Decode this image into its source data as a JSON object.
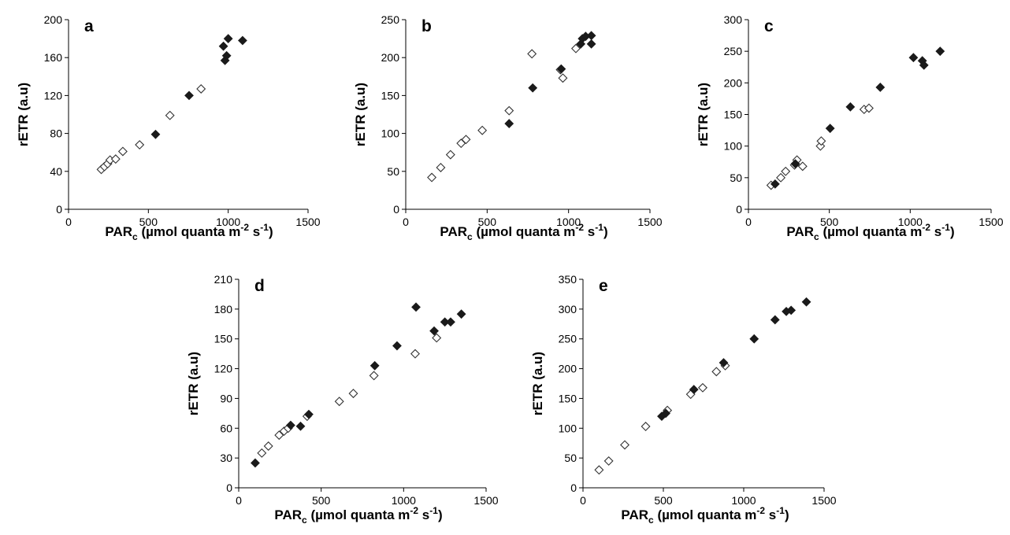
{
  "chart_data": [
    {
      "type": "scatter",
      "panel_label": "a",
      "xlabel": {
        "main": "PAR",
        "sub": "c",
        "rest": " (µmol quanta m",
        "sup1": "-2",
        "mid": " s",
        "sup2": "-1",
        "end": ")"
      },
      "ylabel": "rETR (a.u)",
      "xlim": [
        0,
        1500
      ],
      "ylim": [
        0,
        200
      ],
      "xticks": [
        0,
        500,
        1000,
        1500
      ],
      "yticks": [
        0,
        40,
        80,
        120,
        160,
        200
      ],
      "grid": false,
      "legend": "none",
      "series": [
        {
          "marker": "open-diamond",
          "points": [
            [
              205,
              42
            ],
            [
              225,
              45
            ],
            [
              245,
              48
            ],
            [
              260,
              52
            ],
            [
              295,
              53
            ],
            [
              340,
              61
            ],
            [
              445,
              68
            ],
            [
              635,
              99
            ],
            [
              830,
              127
            ]
          ]
        },
        {
          "marker": "filled-diamond",
          "points": [
            [
              545,
              79
            ],
            [
              755,
              120
            ],
            [
              970,
              172
            ],
            [
              980,
              157
            ],
            [
              990,
              162
            ],
            [
              1000,
              180
            ],
            [
              1090,
              178
            ]
          ]
        }
      ]
    },
    {
      "type": "scatter",
      "panel_label": "b",
      "xlabel": {
        "main": "PAR",
        "sub": "c",
        "rest": " (µmol quanta m",
        "sup1": "-2",
        "mid": " s",
        "sup2": "-1",
        "end": ")"
      },
      "ylabel": "rETR (a.u)",
      "xlim": [
        0,
        1500
      ],
      "ylim": [
        0,
        250
      ],
      "xticks": [
        0,
        500,
        1000,
        1500
      ],
      "yticks": [
        0,
        50,
        100,
        150,
        200,
        250
      ],
      "grid": false,
      "legend": "none",
      "series": [
        {
          "marker": "open-diamond",
          "points": [
            [
              160,
              42
            ],
            [
              215,
              55
            ],
            [
              275,
              72
            ],
            [
              340,
              87
            ],
            [
              370,
              92
            ],
            [
              470,
              104
            ],
            [
              635,
              130
            ],
            [
              775,
              205
            ],
            [
              950,
              184
            ],
            [
              965,
              173
            ],
            [
              1045,
              212
            ]
          ]
        },
        {
          "marker": "filled-diamond",
          "points": [
            [
              635,
              113
            ],
            [
              780,
              160
            ],
            [
              955,
              185
            ],
            [
              1075,
              218
            ],
            [
              1085,
              225
            ],
            [
              1105,
              228
            ],
            [
              1140,
              229
            ],
            [
              1140,
              218
            ]
          ]
        }
      ]
    },
    {
      "type": "scatter",
      "panel_label": "c",
      "xlabel": {
        "main": "PAR",
        "sub": "c",
        "rest": " (µmol quanta m",
        "sup1": "-2",
        "mid": " s",
        "sup2": "-1",
        "end": ")"
      },
      "ylabel": "rETR (a.u)",
      "xlim": [
        0,
        1500
      ],
      "ylim": [
        0,
        300
      ],
      "xticks": [
        0,
        500,
        1000,
        1500
      ],
      "yticks": [
        0,
        50,
        100,
        150,
        200,
        250,
        300
      ],
      "grid": false,
      "legend": "none",
      "series": [
        {
          "marker": "open-diamond",
          "points": [
            [
              140,
              38
            ],
            [
              200,
              50
            ],
            [
              230,
              60
            ],
            [
              285,
              70
            ],
            [
              300,
              78
            ],
            [
              335,
              68
            ],
            [
              445,
              100
            ],
            [
              450,
              108
            ],
            [
              715,
              158
            ],
            [
              745,
              160
            ]
          ]
        },
        {
          "marker": "filled-diamond",
          "points": [
            [
              165,
              40
            ],
            [
              290,
              72
            ],
            [
              505,
              128
            ],
            [
              630,
              162
            ],
            [
              815,
              193
            ],
            [
              1020,
              240
            ],
            [
              1075,
              235
            ],
            [
              1085,
              228
            ],
            [
              1185,
              250
            ]
          ]
        }
      ]
    },
    {
      "type": "scatter",
      "panel_label": "d",
      "xlabel": {
        "main": "PAR",
        "sub": "c",
        "rest": " (µmol quanta m",
        "sup1": "-2",
        "mid": " s",
        "sup2": "-1",
        "end": ")"
      },
      "ylabel": "rETR (a.u)",
      "xlim": [
        0,
        1500
      ],
      "ylim": [
        0,
        210
      ],
      "xticks": [
        0,
        500,
        1000,
        1500
      ],
      "yticks": [
        0,
        30,
        60,
        90,
        120,
        150,
        180,
        210
      ],
      "grid": false,
      "legend": "none",
      "series": [
        {
          "marker": "open-diamond",
          "points": [
            [
              140,
              35
            ],
            [
              180,
              42
            ],
            [
              245,
              53
            ],
            [
              275,
              57
            ],
            [
              300,
              60
            ],
            [
              415,
              72
            ],
            [
              610,
              87
            ],
            [
              695,
              95
            ],
            [
              820,
              113
            ],
            [
              1070,
              135
            ],
            [
              1200,
              151
            ]
          ]
        },
        {
          "marker": "filled-diamond",
          "points": [
            [
              100,
              25
            ],
            [
              315,
              63
            ],
            [
              375,
              62
            ],
            [
              425,
              74
            ],
            [
              825,
              123
            ],
            [
              960,
              143
            ],
            [
              1075,
              182
            ],
            [
              1185,
              158
            ],
            [
              1250,
              167
            ],
            [
              1285,
              167
            ],
            [
              1350,
              175
            ]
          ]
        }
      ]
    },
    {
      "type": "scatter",
      "panel_label": "e",
      "xlabel": {
        "main": "PAR",
        "sub": "c",
        "rest": " (µmol quanta m",
        "sup1": "-2",
        "mid": " s",
        "sup2": "-1",
        "end": ")"
      },
      "ylabel": "rETR (a.u)",
      "xlim": [
        0,
        1500
      ],
      "ylim": [
        0,
        350
      ],
      "xticks": [
        0,
        500,
        1000,
        1500
      ],
      "yticks": [
        0,
        50,
        100,
        150,
        200,
        250,
        300,
        350
      ],
      "grid": false,
      "legend": "none",
      "series": [
        {
          "marker": "open-diamond",
          "points": [
            [
              100,
              30
            ],
            [
              160,
              45
            ],
            [
              260,
              72
            ],
            [
              390,
              103
            ],
            [
              525,
              130
            ],
            [
              670,
              157
            ],
            [
              745,
              168
            ],
            [
              830,
              195
            ],
            [
              885,
              205
            ]
          ]
        },
        {
          "marker": "filled-diamond",
          "points": [
            [
              490,
              120
            ],
            [
              515,
              125
            ],
            [
              690,
              165
            ],
            [
              875,
              210
            ],
            [
              1065,
              250
            ],
            [
              1195,
              282
            ],
            [
              1265,
              296
            ],
            [
              1295,
              298
            ],
            [
              1390,
              312
            ]
          ]
        }
      ]
    }
  ]
}
